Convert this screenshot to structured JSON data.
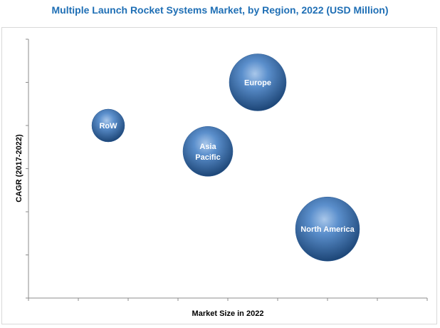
{
  "chart_data": {
    "type": "bubble",
    "title": "Multiple Launch Rocket Systems Market, by Region, 2022 (USD Million)",
    "xlabel": "Market Size in 2022",
    "ylabel": "CAGR (2017-2022)",
    "xlim": [
      0,
      8
    ],
    "ylim": [
      0,
      6
    ],
    "grid": false,
    "bubble_color": "#3a73b3",
    "series": [
      {
        "name": "Europe",
        "label_lines": [
          "Europe"
        ],
        "x": 4.6,
        "y": 5.0,
        "size": 40
      },
      {
        "name": "RoW",
        "label_lines": [
          "RoW"
        ],
        "x": 1.6,
        "y": 4.0,
        "size": 23
      },
      {
        "name": "Asia Pacific",
        "label_lines": [
          "Asia",
          "Pacific"
        ],
        "x": 3.6,
        "y": 3.4,
        "size": 35
      },
      {
        "name": "North America",
        "label_lines": [
          "North America"
        ],
        "x": 6.0,
        "y": 1.6,
        "size": 45
      }
    ]
  }
}
